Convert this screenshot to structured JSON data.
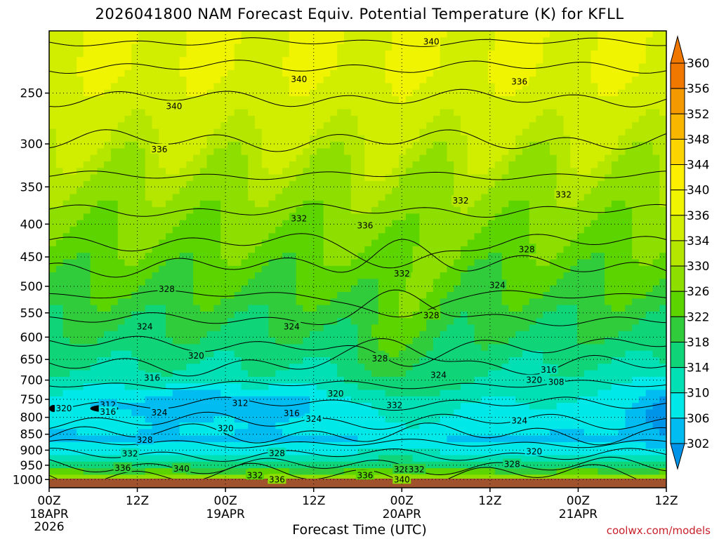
{
  "chart_data": {
    "type": "heatmap",
    "title": "2026041800 NAM Forecast Equiv. Potential Temperature (K) for KFLL",
    "xlabel": "Forecast Time (UTC)",
    "ylabel": "",
    "x_ticks": [
      {
        "label": "00Z",
        "sub1": "18APR",
        "sub2": "2026",
        "hour": 0
      },
      {
        "label": "12Z",
        "sub1": "",
        "sub2": "",
        "hour": 12
      },
      {
        "label": "00Z",
        "sub1": "19APR",
        "sub2": "",
        "hour": 24
      },
      {
        "label": "12Z",
        "sub1": "",
        "sub2": "",
        "hour": 36
      },
      {
        "label": "00Z",
        "sub1": "20APR",
        "sub2": "",
        "hour": 48
      },
      {
        "label": "12Z",
        "sub1": "",
        "sub2": "",
        "hour": 60
      },
      {
        "label": "00Z",
        "sub1": "21APR",
        "sub2": "",
        "hour": 72
      },
      {
        "label": "12Z",
        "sub1": "",
        "sub2": "",
        "hour": 84
      }
    ],
    "xlim": [
      0,
      84
    ],
    "y_ticks": [
      250,
      300,
      350,
      400,
      450,
      500,
      550,
      600,
      650,
      700,
      750,
      800,
      850,
      900,
      950,
      1000
    ],
    "ylim": [
      1030,
      200
    ],
    "y_scale": "log-pressure",
    "colorbar": {
      "labels": [
        360,
        356,
        352,
        348,
        344,
        340,
        336,
        334,
        330,
        326,
        322,
        318,
        314,
        310,
        306,
        302
      ],
      "colors": [
        "#f07800",
        "#f49a00",
        "#f8b600",
        "#fcd400",
        "#fcf000",
        "#f0f400",
        "#d2ee00",
        "#b4e600",
        "#8ede00",
        "#5cd400",
        "#30cc3c",
        "#10d478",
        "#00e0b4",
        "#00e8e8",
        "#00bcf0",
        "#0094e8"
      ]
    },
    "contour_labels": [
      {
        "text": "340",
        "hour": 52,
        "p": 208
      },
      {
        "text": "340",
        "hour": 34,
        "p": 238
      },
      {
        "text": "336",
        "hour": 64,
        "p": 240
      },
      {
        "text": "340",
        "hour": 17,
        "p": 262
      },
      {
        "text": "336",
        "hour": 15,
        "p": 306
      },
      {
        "text": "332",
        "hour": 56,
        "p": 368
      },
      {
        "text": "332",
        "hour": 70,
        "p": 360
      },
      {
        "text": "332",
        "hour": 34,
        "p": 392
      },
      {
        "text": "336",
        "hour": 43,
        "p": 402
      },
      {
        "text": "328",
        "hour": 65,
        "p": 438
      },
      {
        "text": "328",
        "hour": 16,
        "p": 505
      },
      {
        "text": "332",
        "hour": 48,
        "p": 478
      },
      {
        "text": "324",
        "hour": 61,
        "p": 498
      },
      {
        "text": "328",
        "hour": 52,
        "p": 555
      },
      {
        "text": "324",
        "hour": 13,
        "p": 578
      },
      {
        "text": "324",
        "hour": 33,
        "p": 578
      },
      {
        "text": "320",
        "hour": 20,
        "p": 642
      },
      {
        "text": "328",
        "hour": 45,
        "p": 648
      },
      {
        "text": "324",
        "hour": 53,
        "p": 688
      },
      {
        "text": "316",
        "hour": 14,
        "p": 695
      },
      {
        "text": "316",
        "hour": 68,
        "p": 675
      },
      {
        "text": "320",
        "hour": 66,
        "p": 700
      },
      {
        "text": "308",
        "hour": 69,
        "p": 705
      },
      {
        "text": "320",
        "hour": 39,
        "p": 735
      },
      {
        "text": "312",
        "hour": 8,
        "p": 765
      },
      {
        "text": "320",
        "hour": 2,
        "p": 775
      },
      {
        "text": "316",
        "hour": 8,
        "p": 785
      },
      {
        "text": "324",
        "hour": 15,
        "p": 787
      },
      {
        "text": "312",
        "hour": 26,
        "p": 760
      },
      {
        "text": "316",
        "hour": 33,
        "p": 789
      },
      {
        "text": "324",
        "hour": 36,
        "p": 805
      },
      {
        "text": "332",
        "hour": 47,
        "p": 766
      },
      {
        "text": "320",
        "hour": 24,
        "p": 833
      },
      {
        "text": "328",
        "hour": 13,
        "p": 868
      },
      {
        "text": "324",
        "hour": 64,
        "p": 810
      },
      {
        "text": "332",
        "hour": 11,
        "p": 912
      },
      {
        "text": "328",
        "hour": 31,
        "p": 910
      },
      {
        "text": "320",
        "hour": 66,
        "p": 905
      },
      {
        "text": "328",
        "hour": 63,
        "p": 947
      },
      {
        "text": "336",
        "hour": 10,
        "p": 960
      },
      {
        "text": "340",
        "hour": 18,
        "p": 962
      },
      {
        "text": "328",
        "hour": 48,
        "p": 965
      },
      {
        "text": "332",
        "hour": 50,
        "p": 965
      },
      {
        "text": "332",
        "hour": 28,
        "p": 985
      },
      {
        "text": "336",
        "hour": 31,
        "p": 1000
      },
      {
        "text": "336",
        "hour": 43,
        "p": 985
      },
      {
        "text": "340",
        "hour": 48,
        "p": 1000
      }
    ],
    "grid": true
  },
  "credit": "coolwx.com/models"
}
